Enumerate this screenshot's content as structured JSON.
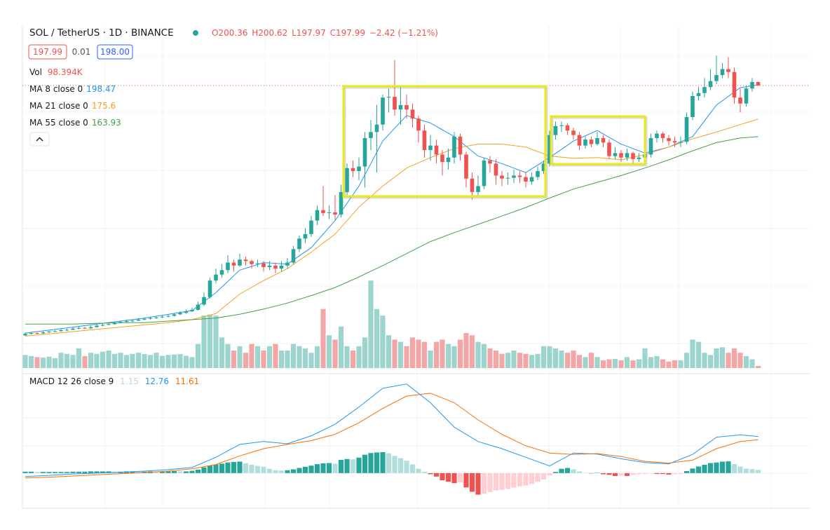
{
  "chart_data": {
    "type": "candlestick",
    "title": "SOL / TetherUS · 1D · BINANCE",
    "ohlc_labels": [
      "O200.36",
      "H200.62",
      "L197.97",
      "C197.99",
      "−2.42 (−1.21%)"
    ],
    "bid_label": "197.99",
    "spread_label": "0.01",
    "ask_label": "198.00",
    "up_color": "#26a69a",
    "down_color": "#ef5350",
    "ylim": [
      9.7,
      238.2
    ],
    "open": [
      31.5,
      32.5,
      33,
      32.8,
      33.5,
      34,
      34.3,
      35,
      35.2,
      36,
      36.5,
      36.2,
      37,
      38,
      38.5,
      39,
      40,
      40.5,
      41,
      41.3,
      42,
      42.5,
      43,
      43.5,
      44,
      44.5,
      45.5,
      46.5,
      47.5,
      48.5,
      52,
      57,
      68,
      72,
      75,
      80,
      78,
      82,
      81,
      79,
      79.5,
      77,
      78,
      76,
      78,
      80,
      89,
      96,
      99,
      108,
      115,
      113,
      113.5,
      112,
      127,
      143,
      141,
      144,
      163,
      167,
      172,
      190,
      190.5,
      182,
      185,
      182,
      176,
      168,
      155,
      158,
      152,
      147,
      150,
      164,
      152,
      136,
      127,
      131,
      148,
      146,
      138,
      136,
      136.5,
      138,
      137,
      134,
      137,
      141,
      146,
      165,
      171,
      171.5,
      168,
      165,
      158,
      162,
      159,
      163,
      160,
      151,
      153,
      150,
      153,
      149,
      150,
      152,
      163,
      166,
      163,
      161,
      160,
      160.5,
      177,
      191,
      193,
      197,
      201,
      205,
      209,
      207,
      190,
      186,
      196,
      200.36
    ],
    "high": [
      33.5,
      33.8,
      33.6,
      34.2,
      34.8,
      35,
      35.8,
      36,
      36.8,
      37.5,
      37.2,
      37.8,
      38.8,
      39.4,
      39.8,
      40.8,
      41.4,
      42,
      42.2,
      43,
      43.4,
      44,
      44.5,
      45,
      45.6,
      46.5,
      47.6,
      48.8,
      50,
      54,
      60,
      70,
      76,
      79,
      85,
      82,
      86,
      84,
      82,
      82,
      81,
      81,
      80,
      81,
      83,
      91,
      98,
      103,
      111,
      118,
      131,
      118,
      125,
      132,
      146,
      148,
      150,
      167,
      175,
      185,
      192,
      196,
      215,
      198,
      192,
      186,
      178,
      172,
      165,
      162,
      155,
      156,
      167,
      166,
      154,
      140,
      138,
      150,
      151,
      149,
      141,
      140,
      142,
      141,
      140,
      140,
      144,
      148,
      168,
      174,
      174,
      173,
      170,
      167,
      164,
      164,
      167,
      165,
      162,
      157,
      155,
      156,
      154,
      153,
      155,
      166,
      168,
      167,
      165,
      164,
      164,
      180,
      194,
      197,
      203,
      209,
      218,
      213,
      217,
      210,
      196,
      198,
      203,
      200.62
    ],
    "low": [
      31,
      32,
      32.2,
      32.5,
      33,
      33.6,
      34,
      34.5,
      35,
      35.6,
      35.6,
      35.8,
      36.6,
      37.5,
      38,
      38.6,
      39.5,
      40,
      40.4,
      41,
      41.5,
      42,
      42.4,
      43,
      43.4,
      44,
      45,
      46,
      47,
      48,
      51,
      56,
      66,
      70,
      73,
      74,
      77,
      78,
      76,
      77,
      74,
      75,
      73,
      74,
      76,
      79,
      87,
      93,
      97,
      105,
      111,
      109,
      108,
      110,
      125,
      137,
      135,
      130,
      155,
      140,
      168,
      180,
      178,
      172,
      176,
      170,
      160,
      150,
      148,
      146,
      138,
      142,
      146,
      148,
      130,
      122,
      124,
      129,
      140,
      132,
      131,
      132,
      133,
      133,
      130,
      132,
      135,
      139,
      144,
      162,
      167,
      165,
      162,
      155,
      156,
      157,
      158,
      157,
      149,
      149,
      147,
      148,
      145,
      147,
      146,
      150,
      160,
      160,
      158,
      157,
      157,
      159,
      175,
      188,
      190,
      195,
      199,
      203,
      203,
      186,
      180,
      184,
      194,
      197.97
    ],
    "close": [
      32.5,
      33,
      32.8,
      33.5,
      34,
      34.3,
      35,
      35.2,
      36,
      36.5,
      36.2,
      37,
      38,
      38.5,
      39,
      40,
      40.5,
      41,
      41.3,
      42,
      42.5,
      43,
      43.5,
      44,
      44.5,
      45.5,
      46.5,
      47.5,
      48.5,
      52,
      57,
      68,
      72,
      75,
      80,
      78,
      82,
      81,
      79,
      79.5,
      77,
      78,
      76,
      78,
      80,
      89,
      96,
      99,
      108,
      115,
      113,
      113.5,
      112,
      127,
      143,
      141,
      144,
      163,
      167,
      172,
      190,
      190.5,
      182,
      185,
      182,
      176,
      168,
      155,
      158,
      152,
      147,
      150,
      164,
      152,
      136,
      127,
      131,
      148,
      146,
      138,
      136,
      136.5,
      138,
      137,
      134,
      137,
      141,
      146,
      165,
      171,
      171.5,
      168,
      165,
      158,
      162,
      159,
      163,
      160,
      151,
      153,
      150,
      153,
      149,
      150,
      152,
      163,
      166,
      163,
      161,
      160,
      160.5,
      177,
      191,
      193,
      197,
      201,
      205,
      209,
      207,
      190,
      186,
      196,
      200.36,
      197.99
    ],
    "line_x": [
      0,
      4,
      8,
      12,
      16,
      20,
      24,
      28,
      32,
      36,
      40,
      44,
      48,
      52,
      56,
      60,
      64,
      68,
      72,
      76,
      80,
      84,
      88,
      92,
      96,
      100,
      104,
      108,
      112,
      116,
      120,
      123
    ],
    "moving_averages": [
      {
        "name": "MA 8 close 0",
        "color": "#2196f3",
        "values": [
          33,
          35,
          37,
          39,
          41,
          43,
          45.5,
          48,
          60,
          75,
          80,
          79,
          90,
          108,
          131,
          161,
          178,
          173,
          164,
          151,
          146,
          140,
          150,
          161,
          168,
          159,
          153,
          157,
          164,
          185,
          196.6,
          198.47
        ]
      },
      {
        "name": "MA 21 close 0",
        "color": "#f5a01f",
        "values": [
          31,
          32.5,
          34,
          35.5,
          37,
          38.5,
          40,
          42,
          46,
          59,
          68,
          76,
          87,
          99,
          117,
          131,
          143,
          150,
          156,
          159,
          159,
          157,
          151,
          149.5,
          150,
          148.5,
          152,
          157,
          162.5,
          167,
          172,
          175.6
        ]
      },
      {
        "name": "MA 55 close 0",
        "color": "#43a047",
        "values": [
          39,
          39,
          39,
          39.5,
          40,
          40,
          41,
          42,
          43,
          45.6,
          49,
          53,
          58,
          63.4,
          70.4,
          78,
          86,
          94,
          100,
          105.5,
          111,
          116.7,
          123,
          129,
          133.5,
          138,
          143,
          148.5,
          154.5,
          160,
          163,
          163.93
        ]
      }
    ],
    "volume": {
      "name": "Vol",
      "last_label": "98.394K",
      "label_color": "#ef5350",
      "up_color": "#9bd5cd",
      "down_color": "#f4a6a6",
      "ylim": [
        0,
        4200
      ],
      "values": [
        600,
        550,
        500,
        480,
        520,
        450,
        700,
        650,
        600,
        900,
        550,
        700,
        650,
        750,
        800,
        650,
        700,
        600,
        650,
        700,
        640,
        600,
        700,
        560,
        600,
        620,
        640,
        560,
        500,
        1100,
        2400,
        2450,
        2400,
        1400,
        1100,
        800,
        1000,
        700,
        1100,
        1000,
        800,
        1000,
        1100,
        800,
        800,
        1100,
        1000,
        900,
        700,
        1000,
        2700,
        1500,
        1300,
        1900,
        1000,
        800,
        1000,
        1400,
        4000,
        2700,
        2400,
        1500,
        1300,
        1200,
        1000,
        1400,
        1300,
        1200,
        800,
        1200,
        1300,
        1100,
        1000,
        1300,
        1600,
        1500,
        1200,
        1100,
        900,
        800,
        650,
        700,
        800,
        700,
        650,
        600,
        650,
        1000,
        1000,
        900,
        800,
        700,
        800,
        600,
        500,
        700,
        500,
        350,
        400,
        420,
        350,
        500,
        350,
        400,
        900,
        500,
        550,
        400,
        300,
        350,
        350,
        700,
        1300,
        1200,
        700,
        600,
        900,
        950,
        700,
        900,
        700,
        550,
        400,
        98.394
      ]
    },
    "macd": {
      "name": "MACD 12 26 close 9",
      "ylim": [
        -11.5,
        32.9
      ],
      "histogram": {
        "colors": [
          "#26a69a",
          "#b2dfdb",
          "#ef5350",
          "#ffcdd2"
        ],
        "label_color": "#b2dfdb",
        "values": [
          0.5,
          0.5,
          0.4,
          0.4,
          0.4,
          0.4,
          0.4,
          0.4,
          0.5,
          0.5,
          0.5,
          0.6,
          0.6,
          0.6,
          0.6,
          0.5,
          0.5,
          0.6,
          0.6,
          0.5,
          0.5,
          0.6,
          0.5,
          0.5,
          0.6,
          0.7,
          0.6,
          0.6,
          0.8,
          1.2,
          2,
          2.6,
          3,
          3.3,
          3.7,
          3.9,
          4,
          3.4,
          2.9,
          2.5,
          2.2,
          1.5,
          1,
          0.9,
          1,
          1.3,
          1.8,
          2.2,
          2.6,
          3.1,
          3.4,
          3.5,
          3.3,
          4.6,
          4.9,
          4.8,
          5.4,
          6.4,
          7,
          7.2,
          7.3,
          6.9,
          6,
          5.2,
          4.3,
          3,
          1.5,
          0.5,
          -0.4,
          -1.2,
          -2.5,
          -3,
          -3.5,
          -3.2,
          -5,
          -6.5,
          -7.5,
          -7.2,
          -6.6,
          -6,
          -5.8,
          -5.5,
          -5,
          -4.6,
          -4.3,
          -3.8,
          -3,
          -2.2,
          -0.8,
          0.4,
          1.5,
          1.8,
          1.3,
          0.6,
          0.1,
          -0.1,
          0.1,
          -0.4,
          -0.6,
          -1,
          -0.9,
          -1,
          -0.6,
          -0.4,
          -0.3,
          -0.2,
          -0.3,
          -0.3,
          -0.5,
          -0.4,
          -0.3,
          0.7,
          1.6,
          2.3,
          2.9,
          3.5,
          3.7,
          4,
          4.1,
          3.2,
          2.3,
          1.6,
          1.4,
          1.15
        ]
      },
      "lines": [
        {
          "color": "#2196f3",
          "values": [
            -1.2,
            -0.8,
            -0.3,
            0,
            0.3,
            0.7,
            1.2,
            2,
            5.5,
            10,
            11,
            10.2,
            13,
            17,
            23,
            29.5,
            31,
            24.5,
            16,
            11,
            8.5,
            5.5,
            2.5,
            7,
            6.6,
            5,
            3.7,
            3.2,
            6.5,
            12.5,
            13.3,
            12.76
          ]
        },
        {
          "color": "#ff6d00",
          "values": [
            -1.7,
            -1.4,
            -1,
            -0.6,
            -0.2,
            0.2,
            0.7,
            1.5,
            3,
            6,
            8.5,
            10,
            11.3,
            13.5,
            17.5,
            22.5,
            26.8,
            27.8,
            24.5,
            18.5,
            13.5,
            9.5,
            7,
            6.5,
            6.8,
            5.8,
            4.1,
            3.5,
            4.5,
            8.5,
            11,
            11.61
          ]
        }
      ]
    }
  }
}
